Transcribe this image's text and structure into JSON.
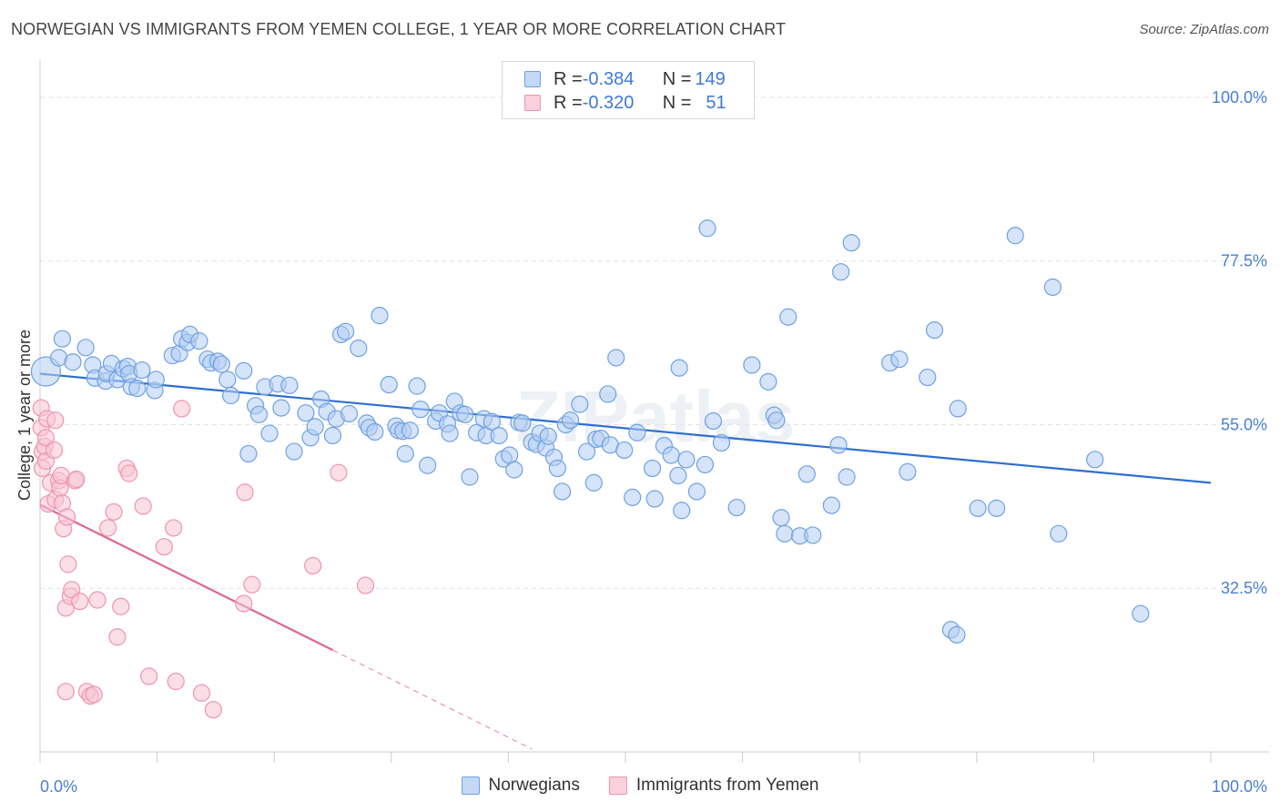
{
  "header": {
    "title": "NORWEGIAN VS IMMIGRANTS FROM YEMEN COLLEGE, 1 YEAR OR MORE CORRELATION CHART",
    "source": "Source: ZipAtlas.com"
  },
  "watermark": "ZIPatlas",
  "legend": {
    "rows": [
      {
        "r_label": "R = ",
        "r_value": "-0.384",
        "n_label": "N = ",
        "n_value": "149",
        "color": "#a9c7f0"
      },
      {
        "r_label": "R = ",
        "r_value": "-0.320",
        "n_label": "N = ",
        "n_value": "51",
        "color": "#f5b8c8"
      }
    ]
  },
  "bottom_legend": {
    "items": [
      {
        "label": "Norwegians",
        "color": "#a9c7f0"
      },
      {
        "label": "Immigrants from Yemen",
        "color": "#f5b8c8"
      }
    ]
  },
  "chart_data": {
    "type": "scatter",
    "title": "NORWEGIAN VS IMMIGRANTS FROM YEMEN COLLEGE, 1 YEAR OR MORE CORRELATION CHART",
    "xlabel": "",
    "ylabel": "College, 1 year or more",
    "xlim": [
      0,
      100
    ],
    "ylim": [
      10,
      104
    ],
    "x_tick_labels": [
      "0.0%",
      "100.0%"
    ],
    "y_ticks": [
      {
        "value": 100,
        "label": "100.0%"
      },
      {
        "value": 77.5,
        "label": "77.5%"
      },
      {
        "value": 55,
        "label": "55.0%"
      },
      {
        "value": 32.5,
        "label": "32.5%"
      }
    ],
    "grid": true,
    "series": [
      {
        "name": "Norwegians",
        "color": "#6fa1e3",
        "fill": "#b3cdf2",
        "trend": {
          "x": [
            0,
            100
          ],
          "y": [
            62.0,
            47.0
          ],
          "color": "#2d6fd0"
        },
        "points": [
          [
            0.5,
            62.3
          ],
          [
            1.6,
            64.2
          ],
          [
            1.9,
            66.8
          ],
          [
            2.8,
            63.6
          ],
          [
            3.9,
            65.6
          ],
          [
            4.5,
            63.2
          ],
          [
            4.7,
            61.4
          ],
          [
            5.6,
            61.0
          ],
          [
            5.7,
            62.0
          ],
          [
            6.1,
            63.4
          ],
          [
            6.6,
            61.2
          ],
          [
            7.1,
            62.7
          ],
          [
            7.5,
            63.0
          ],
          [
            7.6,
            62.0
          ],
          [
            7.8,
            60.2
          ],
          [
            8.3,
            60.0
          ],
          [
            8.7,
            62.5
          ],
          [
            9.8,
            59.7
          ],
          [
            9.9,
            61.2
          ],
          [
            11.3,
            64.5
          ],
          [
            11.9,
            64.8
          ],
          [
            12.1,
            66.8
          ],
          [
            12.6,
            66.3
          ],
          [
            12.8,
            67.4
          ],
          [
            13.6,
            66.5
          ],
          [
            14.3,
            64.0
          ],
          [
            14.6,
            63.5
          ],
          [
            15.2,
            63.7
          ],
          [
            15.5,
            63.3
          ],
          [
            16.0,
            61.2
          ],
          [
            16.3,
            59.0
          ],
          [
            17.4,
            62.4
          ],
          [
            17.8,
            51.0
          ],
          [
            18.4,
            57.6
          ],
          [
            18.7,
            56.4
          ],
          [
            19.2,
            60.2
          ],
          [
            19.6,
            53.8
          ],
          [
            20.3,
            60.6
          ],
          [
            20.6,
            57.3
          ],
          [
            21.3,
            60.4
          ],
          [
            21.7,
            51.3
          ],
          [
            22.7,
            56.6
          ],
          [
            23.1,
            53.2
          ],
          [
            23.5,
            54.7
          ],
          [
            24.0,
            58.5
          ],
          [
            24.5,
            56.8
          ],
          [
            25.0,
            53.5
          ],
          [
            25.3,
            55.8
          ],
          [
            25.7,
            67.4
          ],
          [
            26.1,
            67.8
          ],
          [
            26.4,
            56.5
          ],
          [
            27.2,
            65.5
          ],
          [
            27.9,
            55.2
          ],
          [
            28.1,
            54.6
          ],
          [
            28.6,
            54.0
          ],
          [
            29.0,
            70.0
          ],
          [
            29.8,
            60.5
          ],
          [
            30.4,
            54.8
          ],
          [
            30.6,
            54.2
          ],
          [
            31.0,
            54.1
          ],
          [
            31.2,
            51.0
          ],
          [
            31.6,
            54.2
          ],
          [
            32.2,
            60.3
          ],
          [
            32.5,
            57.1
          ],
          [
            33.1,
            49.4
          ],
          [
            33.8,
            55.5
          ],
          [
            34.1,
            56.6
          ],
          [
            34.8,
            55.1
          ],
          [
            35.0,
            53.8
          ],
          [
            35.4,
            58.2
          ],
          [
            35.9,
            56.6
          ],
          [
            36.3,
            56.4
          ],
          [
            36.7,
            47.8
          ],
          [
            37.3,
            53.9
          ],
          [
            37.9,
            55.8
          ],
          [
            38.1,
            53.5
          ],
          [
            38.6,
            55.4
          ],
          [
            39.2,
            53.5
          ],
          [
            39.6,
            50.3
          ],
          [
            40.1,
            50.8
          ],
          [
            40.5,
            48.8
          ],
          [
            40.9,
            55.3
          ],
          [
            41.2,
            55.2
          ],
          [
            42.0,
            52.6
          ],
          [
            42.4,
            52.3
          ],
          [
            42.7,
            53.8
          ],
          [
            43.2,
            51.8
          ],
          [
            43.4,
            53.4
          ],
          [
            43.9,
            50.5
          ],
          [
            44.2,
            49.0
          ],
          [
            44.6,
            45.8
          ],
          [
            44.9,
            55.0
          ],
          [
            45.3,
            55.6
          ],
          [
            46.1,
            57.8
          ],
          [
            46.7,
            51.3
          ],
          [
            47.3,
            47.0
          ],
          [
            47.5,
            53.0
          ],
          [
            47.9,
            53.1
          ],
          [
            48.5,
            59.2
          ],
          [
            48.7,
            52.2
          ],
          [
            49.2,
            64.2
          ],
          [
            49.9,
            51.5
          ],
          [
            50.6,
            45.0
          ],
          [
            51.0,
            53.9
          ],
          [
            52.3,
            49.0
          ],
          [
            52.5,
            44.8
          ],
          [
            53.3,
            52.1
          ],
          [
            53.9,
            50.8
          ],
          [
            54.5,
            48.0
          ],
          [
            54.6,
            62.8
          ],
          [
            54.8,
            43.2
          ],
          [
            55.2,
            50.2
          ],
          [
            56.1,
            45.8
          ],
          [
            56.8,
            49.5
          ],
          [
            57.0,
            82.0
          ],
          [
            57.5,
            55.5
          ],
          [
            58.2,
            52.5
          ],
          [
            59.5,
            43.6
          ],
          [
            60.8,
            63.2
          ],
          [
            62.2,
            60.9
          ],
          [
            62.7,
            56.3
          ],
          [
            62.9,
            55.6
          ],
          [
            63.3,
            42.2
          ],
          [
            63.6,
            40.0
          ],
          [
            63.9,
            69.8
          ],
          [
            64.9,
            39.7
          ],
          [
            65.5,
            48.2
          ],
          [
            66.0,
            39.8
          ],
          [
            67.6,
            43.9
          ],
          [
            68.2,
            52.2
          ],
          [
            68.4,
            76.0
          ],
          [
            68.9,
            47.8
          ],
          [
            69.3,
            80.0
          ],
          [
            72.6,
            63.5
          ],
          [
            73.4,
            64.0
          ],
          [
            74.1,
            48.5
          ],
          [
            75.8,
            61.5
          ],
          [
            76.4,
            68.0
          ],
          [
            77.8,
            26.8
          ],
          [
            78.3,
            26.1
          ],
          [
            78.4,
            57.2
          ],
          [
            80.1,
            43.5
          ],
          [
            81.7,
            43.5
          ],
          [
            83.3,
            81.0
          ],
          [
            86.5,
            73.9
          ],
          [
            87.0,
            40.0
          ],
          [
            90.1,
            50.2
          ],
          [
            94.0,
            29.0
          ]
        ]
      },
      {
        "name": "Immigrants from Yemen",
        "color": "#ef94ad",
        "fill": "#f8c4d2",
        "trend": {
          "x": [
            0,
            25
          ],
          "y": [
            44.0,
            24.0
          ],
          "color": "#e0678e",
          "dashed_to": {
            "x": 42,
            "y": 10.4
          }
        },
        "points": [
          [
            0.1,
            57.3
          ],
          [
            0.1,
            54.6
          ],
          [
            0.2,
            51.3
          ],
          [
            0.2,
            49.0
          ],
          [
            0.4,
            52.0
          ],
          [
            0.5,
            53.2
          ],
          [
            0.5,
            50.0
          ],
          [
            0.6,
            55.8
          ],
          [
            0.7,
            44.1
          ],
          [
            0.9,
            47.0
          ],
          [
            1.2,
            51.5
          ],
          [
            1.3,
            44.7
          ],
          [
            1.3,
            55.6
          ],
          [
            1.6,
            47.3
          ],
          [
            1.7,
            46.3
          ],
          [
            1.8,
            48.0
          ],
          [
            1.9,
            44.2
          ],
          [
            2.0,
            40.7
          ],
          [
            2.2,
            18.3
          ],
          [
            2.2,
            29.8
          ],
          [
            2.3,
            42.3
          ],
          [
            2.4,
            35.8
          ],
          [
            2.6,
            31.4
          ],
          [
            2.7,
            32.3
          ],
          [
            3.0,
            47.3
          ],
          [
            3.1,
            47.5
          ],
          [
            3.4,
            30.7
          ],
          [
            4.0,
            18.3
          ],
          [
            4.3,
            17.7
          ],
          [
            4.6,
            17.9
          ],
          [
            4.9,
            30.9
          ],
          [
            5.8,
            40.8
          ],
          [
            6.3,
            43.0
          ],
          [
            6.6,
            25.8
          ],
          [
            6.9,
            30.0
          ],
          [
            7.4,
            49.0
          ],
          [
            7.6,
            48.3
          ],
          [
            8.8,
            43.8
          ],
          [
            9.3,
            20.4
          ],
          [
            10.6,
            38.2
          ],
          [
            11.4,
            40.8
          ],
          [
            11.6,
            19.7
          ],
          [
            12.1,
            57.2
          ],
          [
            13.8,
            18.1
          ],
          [
            14.8,
            15.8
          ],
          [
            17.4,
            30.4
          ],
          [
            17.5,
            45.7
          ],
          [
            18.1,
            33.0
          ],
          [
            23.3,
            35.6
          ],
          [
            25.5,
            48.4
          ],
          [
            27.8,
            32.9
          ]
        ]
      }
    ]
  }
}
